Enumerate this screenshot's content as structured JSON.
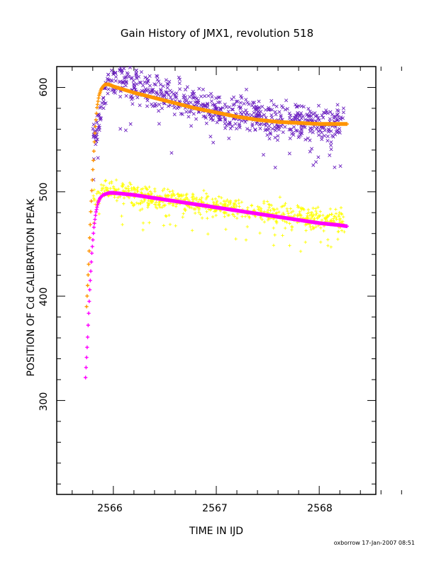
{
  "chart_data": {
    "type": "scatter",
    "title": "Gain History of JMX1, revolution 518",
    "xlabel": "TIME IN IJD",
    "ylabel": "POSITION OF Cd CALIBRATION PEAK",
    "xlim": [
      2565.45,
      2568.55
    ],
    "ylim": [
      210,
      620
    ],
    "x_ticks": [
      "2566",
      "2567",
      "2568"
    ],
    "y_ticks": [
      "300",
      "400",
      "500",
      "600"
    ],
    "grid": false,
    "series": [
      {
        "marker": "x",
        "color": "#6a1fc0",
        "kind": "scatter",
        "x_range": [
          2565.8,
          2568.25
        ],
        "trend": [
          [
            2565.85,
            560
          ],
          [
            2565.95,
            610
          ],
          [
            2566.2,
            600
          ],
          [
            2566.6,
            590
          ],
          [
            2567.0,
            578
          ],
          [
            2567.5,
            570
          ],
          [
            2568.0,
            566
          ],
          [
            2568.25,
            566
          ]
        ],
        "scatter_spread": 22
      },
      {
        "marker": "+",
        "color": "#ffff00",
        "kind": "scatter",
        "x_range": [
          2565.8,
          2568.25
        ],
        "trend": [
          [
            2565.85,
            495
          ],
          [
            2565.95,
            505
          ],
          [
            2566.2,
            497
          ],
          [
            2566.6,
            492
          ],
          [
            2567.0,
            487
          ],
          [
            2567.5,
            480
          ],
          [
            2568.0,
            474
          ],
          [
            2568.25,
            470
          ]
        ],
        "scatter_spread": 14
      },
      {
        "marker": "+",
        "color": "#ff9400",
        "kind": "fit",
        "x": [
          2565.74,
          2565.76,
          2565.78,
          2565.8,
          2565.82,
          2565.84,
          2565.86,
          2565.88,
          2565.9,
          2565.92,
          2565.95,
          2565.98,
          2566.0,
          2566.1,
          2566.2,
          2566.4,
          2566.6,
          2566.8,
          2567.0,
          2567.2,
          2567.4,
          2567.6,
          2567.8,
          2568.0,
          2568.2,
          2568.27
        ],
        "y": [
          390,
          430,
          480,
          520,
          555,
          580,
          592,
          598,
          601,
          603,
          603,
          602,
          601,
          598,
          595,
          590,
          585,
          580,
          576,
          572,
          569,
          567,
          566,
          565,
          565,
          565
        ]
      },
      {
        "marker": "+",
        "color": "#ff00ff",
        "kind": "fit",
        "x": [
          2565.73,
          2565.75,
          2565.77,
          2565.79,
          2565.81,
          2565.83,
          2565.85,
          2565.87,
          2565.9,
          2565.93,
          2565.96,
          2566.0,
          2566.2,
          2566.4,
          2566.6,
          2566.8,
          2567.0,
          2567.2,
          2567.4,
          2567.6,
          2567.8,
          2568.0,
          2568.2,
          2568.27
        ],
        "y": [
          322,
          360,
          405,
          440,
          465,
          480,
          489,
          494,
          497,
          498,
          499,
          499,
          497,
          494,
          491,
          488,
          485,
          482,
          479,
          476,
          473,
          470,
          468,
          467
        ]
      }
    ]
  },
  "footer": "oxborrow 17-Jan-2007 08:51"
}
